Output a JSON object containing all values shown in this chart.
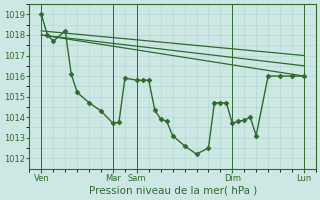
{
  "title": "",
  "xlabel": "Pression niveau de la mer( hPa )",
  "ylabel": "",
  "background_color": "#cde8e4",
  "grid_color": "#b0d4d0",
  "line_color": "#2d6b2d",
  "ylim": [
    1011.5,
    1019.5
  ],
  "yticks": [
    1012,
    1013,
    1014,
    1015,
    1016,
    1017,
    1018,
    1019
  ],
  "xlim": [
    0,
    24
  ],
  "xtick_positions": [
    1,
    7,
    9,
    17,
    23
  ],
  "xtick_labels": [
    "Ven",
    "Mar",
    "Sam",
    "Dim",
    "Lun"
  ],
  "vline_positions": [
    1,
    7,
    9,
    17,
    23
  ],
  "lines": [
    {
      "x": [
        1,
        1.5,
        2,
        3,
        3.5,
        4,
        5,
        6,
        7,
        7.5,
        8,
        9,
        9.5,
        10,
        10.5,
        11,
        11.5,
        12,
        13,
        14,
        15,
        15.5,
        16,
        16.5,
        17,
        17.5,
        18,
        18.5,
        19,
        20,
        21,
        22,
        23
      ],
      "y": [
        1019.0,
        1018.0,
        1017.7,
        1018.2,
        1016.1,
        1015.2,
        1014.7,
        1014.3,
        1013.7,
        1013.75,
        1015.9,
        1015.8,
        1015.8,
        1015.8,
        1014.35,
        1013.9,
        1013.8,
        1013.1,
        1012.6,
        1012.2,
        1012.5,
        1014.7,
        1014.7,
        1014.7,
        1013.7,
        1013.8,
        1013.85,
        1014.0,
        1013.1,
        1016.0,
        1016.0,
        1016.0,
        1016.0
      ],
      "marker": "D",
      "markersize": 2.5,
      "linewidth": 1.0
    },
    {
      "x": [
        1,
        23
      ],
      "y": [
        1018.0,
        1016.0
      ],
      "marker": null,
      "markersize": 0,
      "linewidth": 0.9
    },
    {
      "x": [
        1,
        23
      ],
      "y": [
        1018.0,
        1016.5
      ],
      "marker": null,
      "markersize": 0,
      "linewidth": 0.9
    },
    {
      "x": [
        1,
        23
      ],
      "y": [
        1018.2,
        1017.0
      ],
      "marker": null,
      "markersize": 0,
      "linewidth": 0.9
    }
  ],
  "tick_fontsize": 6,
  "xlabel_fontsize": 7.5
}
